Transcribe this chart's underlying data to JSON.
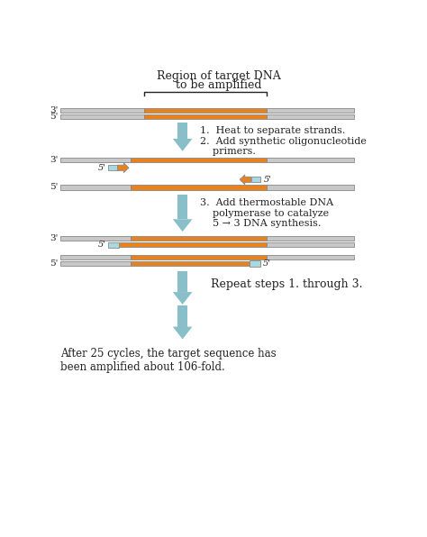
{
  "background_color": "#ffffff",
  "strand_color_gray": "#c8c8c8",
  "strand_color_orange": "#e8821e",
  "primer_color_blue": "#a8d8e0",
  "arrow_color": "#88bfc8",
  "text_color": "#222222",
  "title_line1": "Region of target DNA",
  "title_line2": "to be amplified",
  "step12_text": "1.  Heat to separate strands.\n2.  Add synthetic oligonucleotide\n    primers.",
  "step3_text": "3.  Add thermostable DNA\n    polymerase to catalyze\n    5 → 3 DNA synthesis.",
  "repeat_text": "Repeat steps 1. through 3.",
  "final_text": "After 25 cycles, the target sequence has\nbeen amplified about 106-fold."
}
